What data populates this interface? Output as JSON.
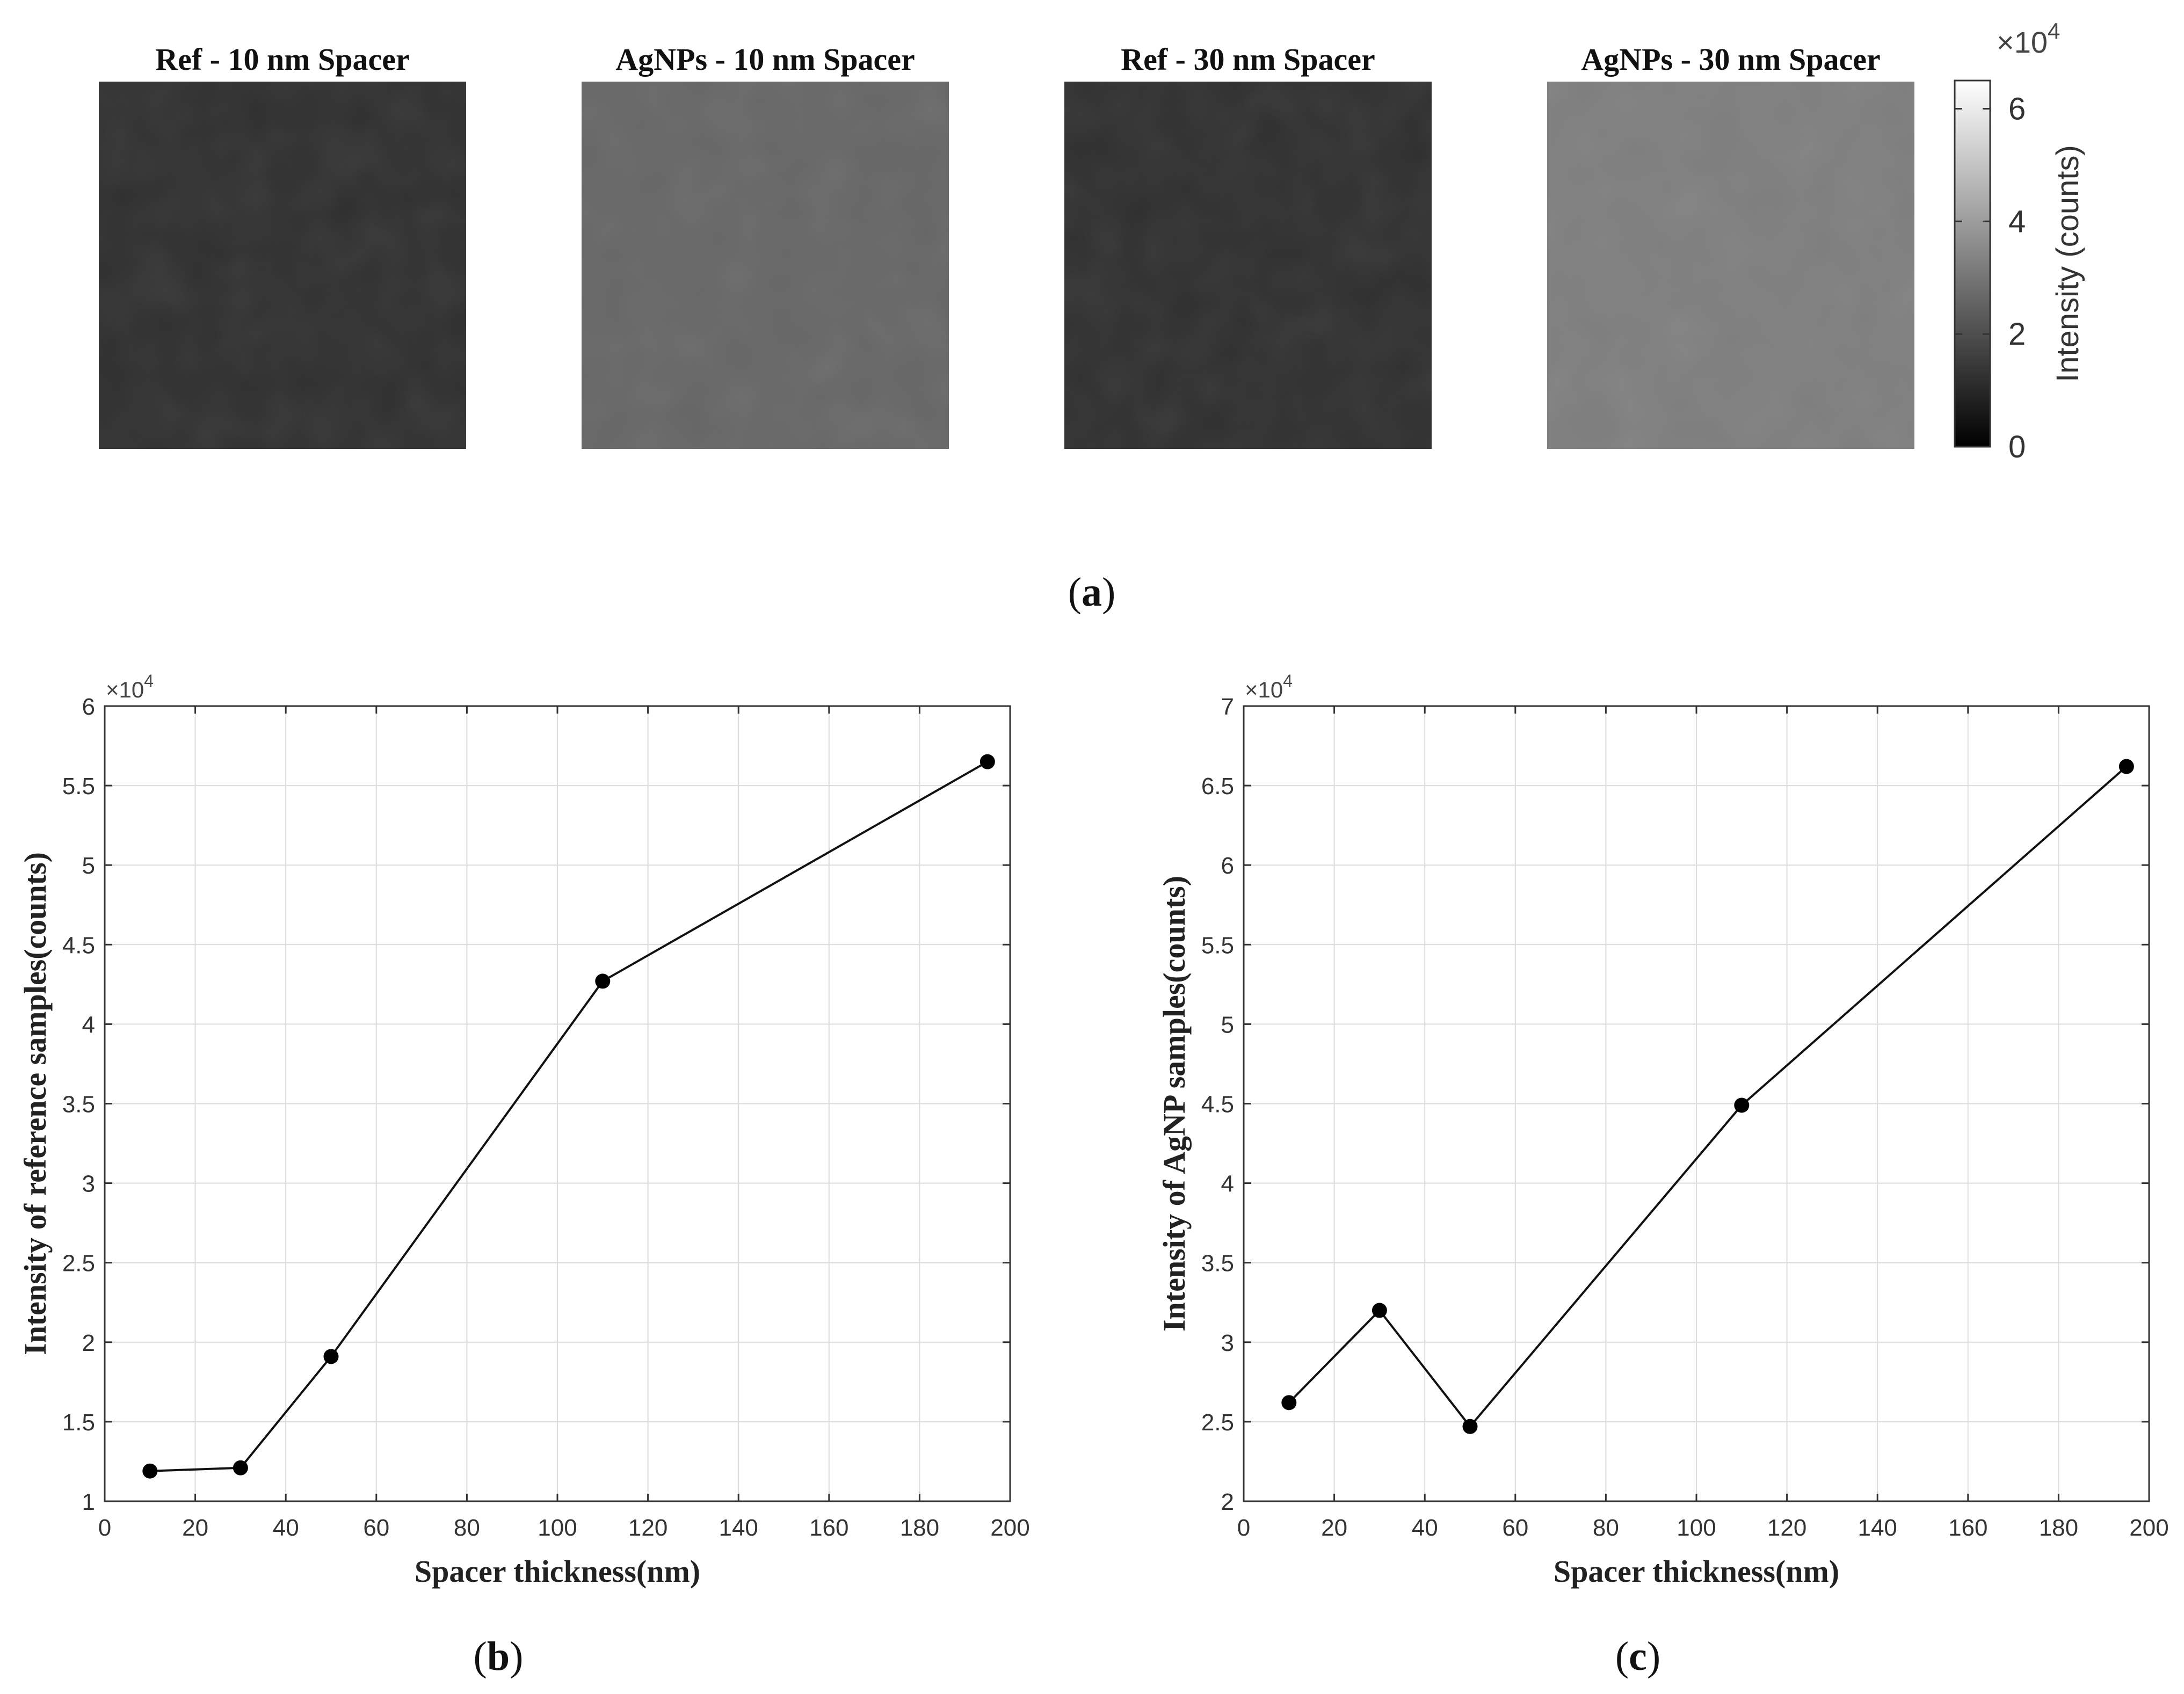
{
  "panel_a": {
    "caption_open": "(",
    "caption_letter": "a",
    "caption_close": ")",
    "maps": [
      {
        "title": "Ref - 10 nm Spacer",
        "mean_intensity": 12000
      },
      {
        "title": "AgNPs - 10 nm Spacer",
        "mean_intensity": 26000
      },
      {
        "title": "Ref - 30 nm Spacer",
        "mean_intensity": 12100
      },
      {
        "title": "AgNPs - 30 nm Spacer",
        "mean_intensity": 32000
      }
    ],
    "colorbar": {
      "label": "Intensity (counts)",
      "exponent_label": "×10",
      "exponent_power": "4",
      "min": 0,
      "max": 65000,
      "ticks": [
        "0",
        "2",
        "4",
        "6"
      ],
      "tick_values": [
        0,
        20000,
        40000,
        60000
      ]
    }
  },
  "chart_data": [
    {
      "type": "line",
      "panel": "b",
      "caption_open": "(",
      "caption_letter": "b",
      "caption_close": ")",
      "xlabel": "Spacer thickness(nm)",
      "ylabel": "Intensity of reference samples(counts)",
      "x": [
        10,
        30,
        50,
        110,
        195
      ],
      "y": [
        11900,
        12100,
        19100,
        42700,
        56500
      ],
      "xlim": [
        0,
        200
      ],
      "ylim": [
        10000,
        60000
      ],
      "xticks": [
        0,
        20,
        40,
        60,
        80,
        100,
        120,
        140,
        160,
        180,
        200
      ],
      "yticks": [
        10000,
        15000,
        20000,
        25000,
        30000,
        35000,
        40000,
        45000,
        50000,
        55000,
        60000
      ],
      "ytick_labels": [
        "1",
        "1.5",
        "2",
        "2.5",
        "3",
        "3.5",
        "4",
        "4.5",
        "5",
        "5.5",
        "6"
      ],
      "exponent_label": "×10",
      "exponent_power": "4",
      "grid": true
    },
    {
      "type": "line",
      "panel": "c",
      "caption_open": "(",
      "caption_letter": "c",
      "caption_close": ")",
      "xlabel": "Spacer thickness(nm)",
      "ylabel": "Intensity of AgNP samples(counts)",
      "x": [
        10,
        30,
        50,
        110,
        195
      ],
      "y": [
        26200,
        32000,
        24700,
        44900,
        66200
      ],
      "xlim": [
        0,
        200
      ],
      "ylim": [
        20000,
        70000
      ],
      "xticks": [
        0,
        20,
        40,
        60,
        80,
        100,
        120,
        140,
        160,
        180,
        200
      ],
      "yticks": [
        20000,
        25000,
        30000,
        35000,
        40000,
        45000,
        50000,
        55000,
        60000,
        65000,
        70000
      ],
      "ytick_labels": [
        "2",
        "2.5",
        "3",
        "3.5",
        "4",
        "4.5",
        "5",
        "5.5",
        "6",
        "6.5",
        "7"
      ],
      "exponent_label": "×10",
      "exponent_power": "4",
      "grid": true
    }
  ]
}
